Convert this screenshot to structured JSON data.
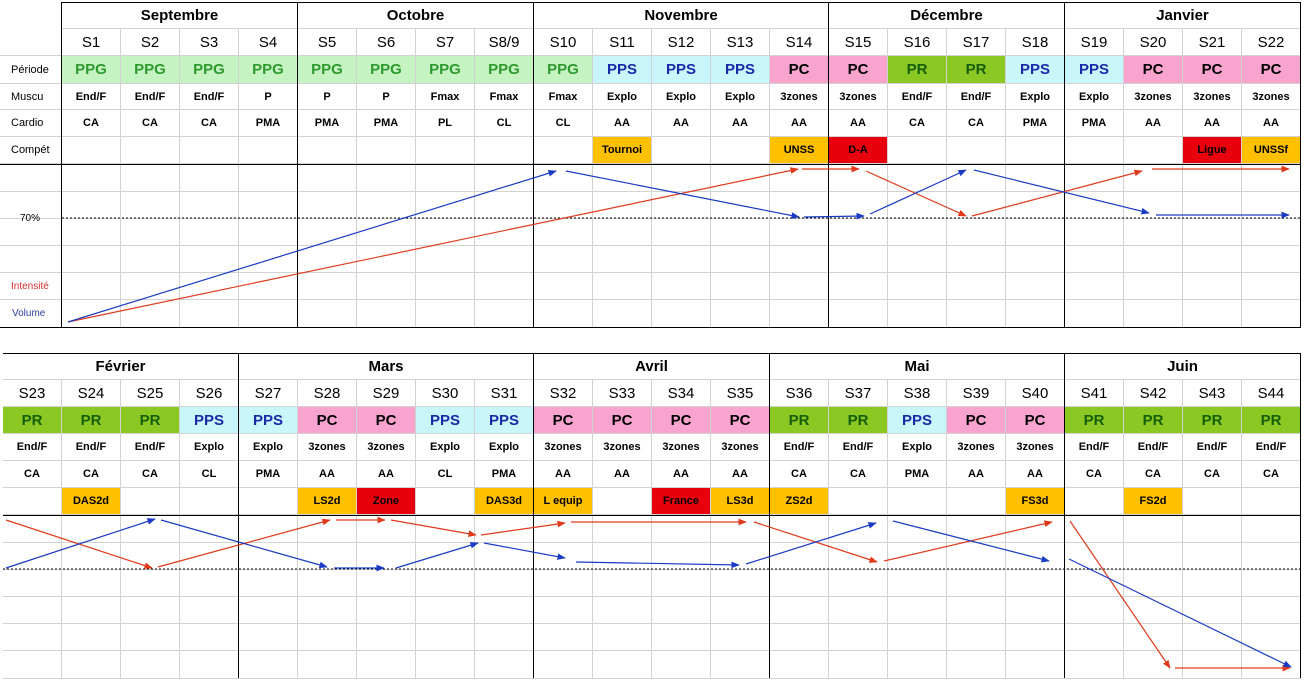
{
  "labels": {
    "periode": "Période",
    "muscu": "Muscu",
    "cardio": "Cardio",
    "compet": "Compét",
    "pct70": "70%",
    "intensite": "Intensité",
    "volume": "Volume"
  },
  "colors": {
    "PPG_bg": "#c6f3c2",
    "PPG_fg": "#2e9a2e",
    "PPS_bg": "#c9f6fb",
    "PPS_fg": "#1a2aa8",
    "PC_bg": "#f9a3cf",
    "PC_fg": "#000000",
    "PR_bg": "#8bc824",
    "PR_fg": "#155f0a",
    "comp_orange": "#ffc000",
    "comp_red": "#e8000c",
    "intensite_line": "#e03a1d",
    "volume_line": "#1a3bc4",
    "label_red": "#d32f2f",
    "label_blue": "#2c3f9e"
  },
  "sections": [
    {
      "months": [
        "Septembre",
        "Octobre",
        "Novembre",
        "Décembre",
        "Janvier"
      ],
      "weeks": [
        "S1",
        "S2",
        "S3",
        "S4",
        "S5",
        "S6",
        "S7",
        "S8/9",
        "S10",
        "S11",
        "S12",
        "S13",
        "S14",
        "S15",
        "S16",
        "S17",
        "S18",
        "S19",
        "S20",
        "S21",
        "S22"
      ],
      "periode": [
        "PPG",
        "PPG",
        "PPG",
        "PPG",
        "PPG",
        "PPG",
        "PPG",
        "PPG",
        "PPG",
        "PPS",
        "PPS",
        "PPS",
        "PC",
        "PC",
        "PR",
        "PR",
        "PPS",
        "PPS",
        "PC",
        "PC",
        "PC"
      ],
      "muscu": [
        "End/F",
        "End/F",
        "End/F",
        "P",
        "P",
        "P",
        "Fmax",
        "Fmax",
        "Fmax",
        "Explo",
        "Explo",
        "Explo",
        "3zones",
        "3zones",
        "End/F",
        "End/F",
        "Explo",
        "Explo",
        "3zones",
        "3zones",
        "3zones"
      ],
      "cardio": [
        "CA",
        "CA",
        "CA",
        "PMA",
        "PMA",
        "PMA",
        "PL",
        "CL",
        "CL",
        "AA",
        "AA",
        "AA",
        "AA",
        "AA",
        "CA",
        "CA",
        "PMA",
        "PMA",
        "AA",
        "AA",
        "AA"
      ],
      "compet": [
        "",
        "",
        "",
        "",
        "",
        "",
        "",
        "",
        "",
        "Tournoi",
        "",
        "",
        "UNSS",
        "D-A",
        "",
        "",
        "",
        "",
        "",
        "Ligue",
        "UNSSf"
      ],
      "compet_type": [
        "",
        "",
        "",
        "",
        "",
        "",
        "",
        "",
        "",
        "o",
        "",
        "",
        "o",
        "r",
        "",
        "",
        "",
        "",
        "",
        "r",
        "o"
      ]
    },
    {
      "months": [
        "Février",
        "Mars",
        "Avril",
        "Mai",
        "Juin"
      ],
      "weeks": [
        "S23",
        "S24",
        "S25",
        "S26",
        "S27",
        "S28",
        "S29",
        "S30",
        "S31",
        "S32",
        "S33",
        "S34",
        "S35",
        "S36",
        "S37",
        "S38",
        "S39",
        "S40",
        "S41",
        "S42",
        "S43",
        "S44"
      ],
      "periode": [
        "PR",
        "PR",
        "PR",
        "PPS",
        "PPS",
        "PC",
        "PC",
        "PPS",
        "PPS",
        "PC",
        "PC",
        "PC",
        "PC",
        "PR",
        "PR",
        "PPS",
        "PC",
        "PC",
        "PR",
        "PR",
        "PR",
        "PR"
      ],
      "muscu": [
        "End/F",
        "End/F",
        "End/F",
        "Explo",
        "Explo",
        "3zones",
        "3zones",
        "Explo",
        "Explo",
        "3zones",
        "3zones",
        "3zones",
        "3zones",
        "End/F",
        "End/F",
        "Explo",
        "3zones",
        "3zones",
        "End/F",
        "End/F",
        "End/F",
        "End/F"
      ],
      "cardio": [
        "CA",
        "CA",
        "CA",
        "CL",
        "PMA",
        "AA",
        "AA",
        "CL",
        "PMA",
        "AA",
        "AA",
        "AA",
        "AA",
        "CA",
        "CA",
        "PMA",
        "AA",
        "AA",
        "CA",
        "CA",
        "CA",
        "CA"
      ],
      "compet": [
        "",
        "DAS2d",
        "",
        "",
        "",
        "LS2d",
        "Zone",
        "",
        "DAS3d",
        "L equip",
        "",
        "France",
        "LS3d",
        "ZS2d",
        "",
        "",
        "",
        "FS3d",
        "",
        "FS2d",
        "",
        ""
      ],
      "compet_type": [
        "",
        "o",
        "",
        "",
        "",
        "o",
        "r",
        "",
        "o",
        "o",
        "",
        "r",
        "o",
        "o",
        "",
        "",
        "",
        "o",
        "",
        "o",
        "",
        ""
      ]
    }
  ]
}
